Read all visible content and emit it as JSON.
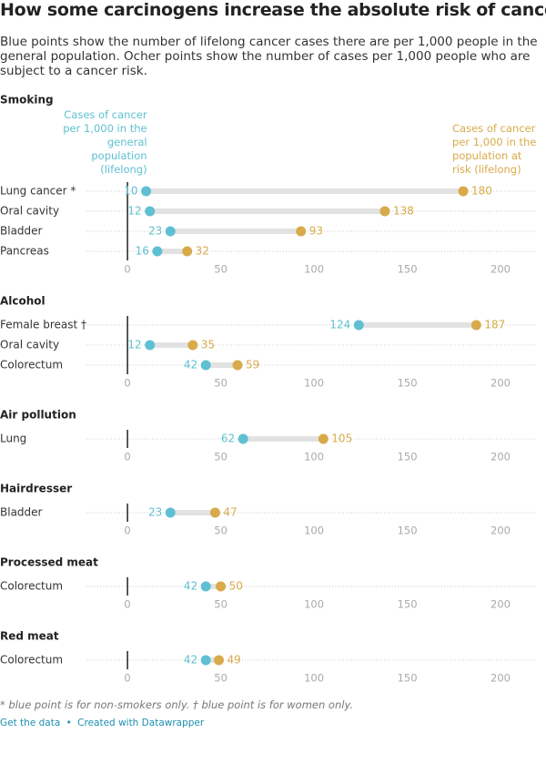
{
  "title": "How some carcinogens increase the absolute risk of cancer",
  "description": "Blue points show the number of lifelong cancer cases there are per 1,000 people in the general population. Ocher points show the number of cases per 1,000 people who are subject to a cancer risk.",
  "notes": "* blue point is for non-smokers only. † blue point is for women only.",
  "footer": {
    "data_link": "Get the data",
    "separator": "•",
    "credit": "Created with Datawrapper"
  },
  "chart_data": [
    {
      "type": "dumbbell",
      "title": "Smoking",
      "categories": [
        "Lung cancer *",
        "Oral cavity",
        "Bladder",
        "Pancreas"
      ],
      "series": [
        {
          "name": "Cases of cancer per 1,000 in the general population (lifelong)",
          "color": "#5ec0d2",
          "values": [
            10,
            12,
            23,
            16
          ]
        },
        {
          "name": "Cases of cancer per 1,000 in the population at risk (lifelong)",
          "color": "#d8aa4a",
          "values": [
            180,
            138,
            93,
            32
          ]
        }
      ],
      "xlim": [
        -22,
        219.5
      ],
      "xticks": [
        0,
        50,
        100,
        150,
        200
      ]
    },
    {
      "type": "dumbbell",
      "title": "Alcohol",
      "categories": [
        "Female breast †",
        "Oral cavity",
        "Colorectum"
      ],
      "series": [
        {
          "color": "#5ec0d2",
          "values": [
            124,
            12,
            42
          ]
        },
        {
          "color": "#d8aa4a",
          "values": [
            187,
            35,
            59
          ]
        }
      ],
      "xlim": [
        -22,
        219.5
      ],
      "xticks": [
        0,
        50,
        100,
        150,
        200
      ]
    },
    {
      "type": "dumbbell",
      "title": "Air pollution",
      "categories": [
        "Lung"
      ],
      "series": [
        {
          "color": "#5ec0d2",
          "values": [
            62
          ]
        },
        {
          "color": "#d8aa4a",
          "values": [
            105
          ]
        }
      ],
      "xlim": [
        -22,
        219.5
      ],
      "xticks": [
        0,
        50,
        100,
        150,
        200
      ]
    },
    {
      "type": "dumbbell",
      "title": "Hairdresser",
      "categories": [
        "Bladder"
      ],
      "series": [
        {
          "color": "#5ec0d2",
          "values": [
            23
          ]
        },
        {
          "color": "#d8aa4a",
          "values": [
            47
          ]
        }
      ],
      "xlim": [
        -22,
        219.5
      ],
      "xticks": [
        0,
        50,
        100,
        150,
        200
      ]
    },
    {
      "type": "dumbbell",
      "title": "Processed meat",
      "categories": [
        "Colorectum"
      ],
      "series": [
        {
          "color": "#5ec0d2",
          "values": [
            42
          ]
        },
        {
          "color": "#d8aa4a",
          "values": [
            50
          ]
        }
      ],
      "xlim": [
        -22,
        219.5
      ],
      "xticks": [
        0,
        50,
        100,
        150,
        200
      ]
    },
    {
      "type": "dumbbell",
      "title": "Red meat",
      "categories": [
        "Colorectum"
      ],
      "series": [
        {
          "color": "#5ec0d2",
          "values": [
            42
          ]
        },
        {
          "color": "#d8aa4a",
          "values": [
            49
          ]
        }
      ],
      "xlim": [
        -22,
        219.5
      ],
      "xticks": [
        0,
        50,
        100,
        150,
        200
      ]
    }
  ]
}
